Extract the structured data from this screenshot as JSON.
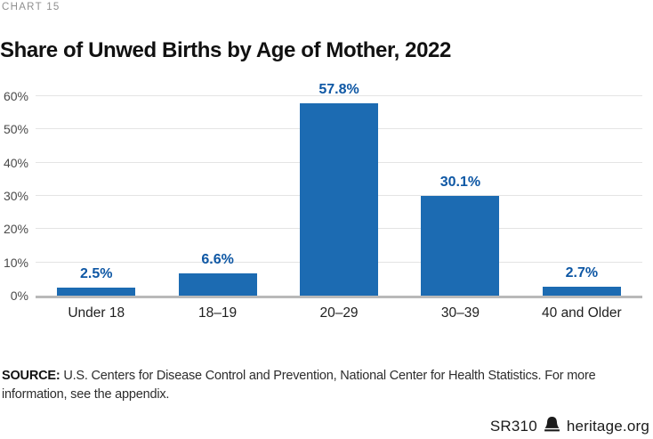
{
  "header": {
    "eyebrow": "CHART 15",
    "title": "Share of Unwed Births by Age of Mother, 2022"
  },
  "chart_data": {
    "type": "bar",
    "title": "Share of Unwed Births by Age of Mother, 2022",
    "categories": [
      "Under 18",
      "18–19",
      "20–29",
      "30–39",
      "40 and Older"
    ],
    "values": [
      2.5,
      6.6,
      57.8,
      30.1,
      2.7
    ],
    "value_labels": [
      "2.5%",
      "6.6%",
      "57.8%",
      "30.1%",
      "2.7%"
    ],
    "xlabel": "",
    "ylabel": "",
    "ylim": [
      0,
      60
    ],
    "yticks": [
      0,
      10,
      20,
      30,
      40,
      50,
      60
    ],
    "ytick_labels": [
      "0%",
      "10%",
      "20%",
      "30%",
      "40%",
      "50%",
      "60%"
    ],
    "grid": true,
    "legend": false,
    "bar_color": "#1c6bb2",
    "value_label_color": "#0e57a4"
  },
  "source": {
    "label": "SOURCE:",
    "line1": "U.S. Centers for Disease Control and Prevention, National Center for Health Statistics. For more",
    "line2": "information, see the appendix."
  },
  "footer": {
    "doc_id": "SR310",
    "site": "heritage.org",
    "logo_icon": "heritage-bell-icon"
  },
  "colors": {
    "bar": "#1c6bb2",
    "value_label": "#0e57a4",
    "gridline": "#e4e4e4",
    "baseline": "#b9b9b9",
    "title": "#111111",
    "eyebrow": "#8f8f8f"
  }
}
